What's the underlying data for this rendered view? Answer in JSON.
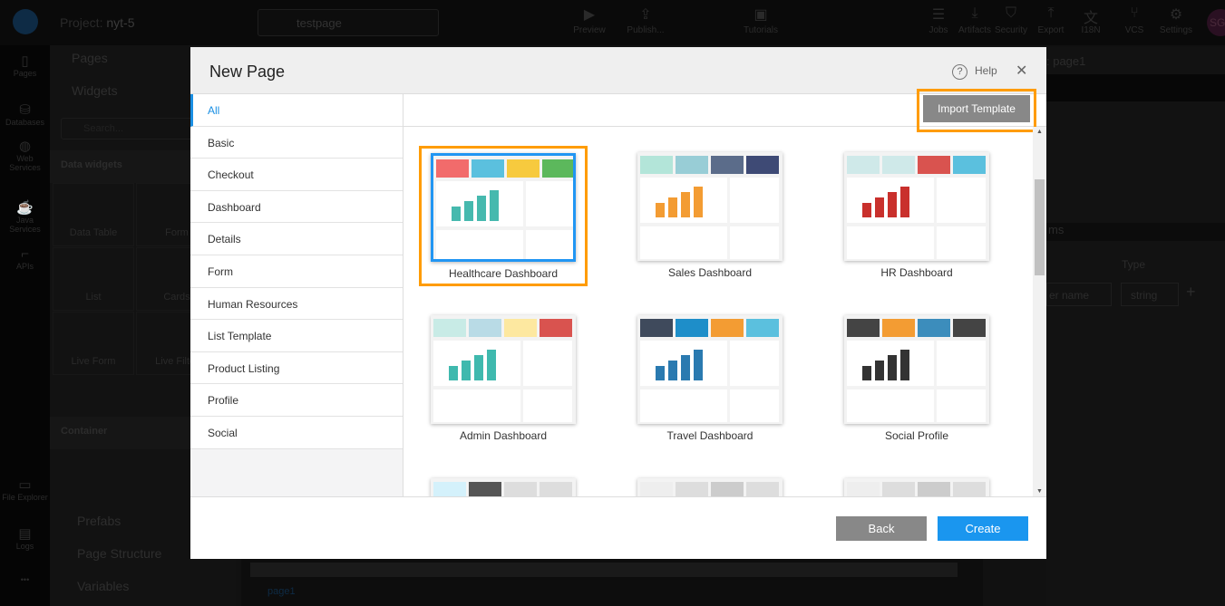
{
  "topbar": {
    "project_label": "Project:",
    "project_name": "nyt-5",
    "page_name": "testpage",
    "tools": [
      {
        "label": "Preview",
        "icon": "play-icon"
      },
      {
        "label": "Publish...",
        "icon": "publish-icon"
      },
      {
        "label": "Tutorials",
        "icon": "video-icon"
      },
      {
        "label": "Jobs",
        "icon": "jobs-icon"
      },
      {
        "label": "Artifacts",
        "icon": "download-icon"
      },
      {
        "label": "Security",
        "icon": "shield-icon"
      },
      {
        "label": "Export",
        "icon": "upload-icon"
      },
      {
        "label": "I18N",
        "icon": "translate-icon"
      },
      {
        "label": "VCS",
        "icon": "branch-icon"
      },
      {
        "label": "Settings",
        "icon": "gear-icon"
      }
    ],
    "avatar": "SG"
  },
  "rail": [
    {
      "label": "Pages"
    },
    {
      "label": "Databases"
    },
    {
      "label": "Web Services"
    },
    {
      "label": "Java Services"
    },
    {
      "label": "APIs"
    },
    {
      "label": "File Explorer"
    },
    {
      "label": "Logs"
    },
    {
      "label": "•••"
    }
  ],
  "panel": {
    "pages": "Pages",
    "widgets": "Widgets",
    "search_placeholder": "Search...",
    "data_widgets": "Data widgets",
    "widget_items": [
      "Data Table",
      "Form",
      "List",
      "Cards",
      "Live Form",
      "Live Filter"
    ],
    "container": "Container",
    "prefabs": "Prefabs",
    "page_structure": "Page Structure",
    "variables": "Variables"
  },
  "right": {
    "title": ": page1",
    "params": "ms",
    "type_header": "Type",
    "name_placeholder": "er name",
    "type_value": "string"
  },
  "canvas": {
    "page_tab": "page1"
  },
  "modal": {
    "title": "New Page",
    "help": "Help",
    "import_template": "Import Template",
    "back": "Back",
    "create": "Create",
    "categories": [
      "All",
      "Basic",
      "Checkout",
      "Dashboard",
      "Details",
      "Form",
      "Human Resources",
      "List Template",
      "Product Listing",
      "Profile",
      "Social"
    ],
    "active_category": "All",
    "templates": [
      {
        "name": "Healthcare Dashboard",
        "selected": true
      },
      {
        "name": "Sales Dashboard"
      },
      {
        "name": "HR Dashboard"
      },
      {
        "name": "Admin Dashboard"
      },
      {
        "name": "Travel Dashboard"
      },
      {
        "name": "Social Profile"
      },
      {
        "name": ""
      },
      {
        "name": ""
      },
      {
        "name": ""
      }
    ]
  },
  "colors": {
    "accent": "#1a96ef",
    "highlight": "#ff9c00"
  }
}
